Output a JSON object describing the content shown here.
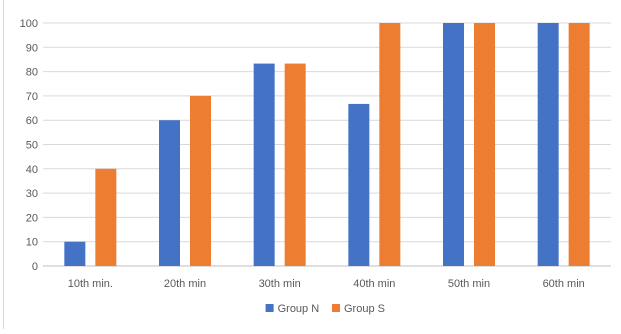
{
  "chart_data": {
    "type": "bar",
    "categories": [
      "10th min.",
      "20th min",
      "30th min",
      "40th min",
      "50th min",
      "60th min"
    ],
    "series": [
      {
        "name": "Group N",
        "color": "#4472C4",
        "values": [
          10,
          60,
          83.3,
          66.7,
          100,
          100
        ]
      },
      {
        "name": "Group S",
        "color": "#ED7D31",
        "values": [
          40,
          70,
          83.3,
          100,
          100,
          100
        ]
      }
    ],
    "yticks": [
      "0",
      "10",
      "20",
      "30",
      "40",
      "50",
      "60",
      "70",
      "80",
      "90",
      "100"
    ],
    "ylim": [
      0,
      100
    ],
    "grid": true,
    "legend_position": "bottom-center",
    "title": "",
    "xlabel": "",
    "ylabel": ""
  }
}
